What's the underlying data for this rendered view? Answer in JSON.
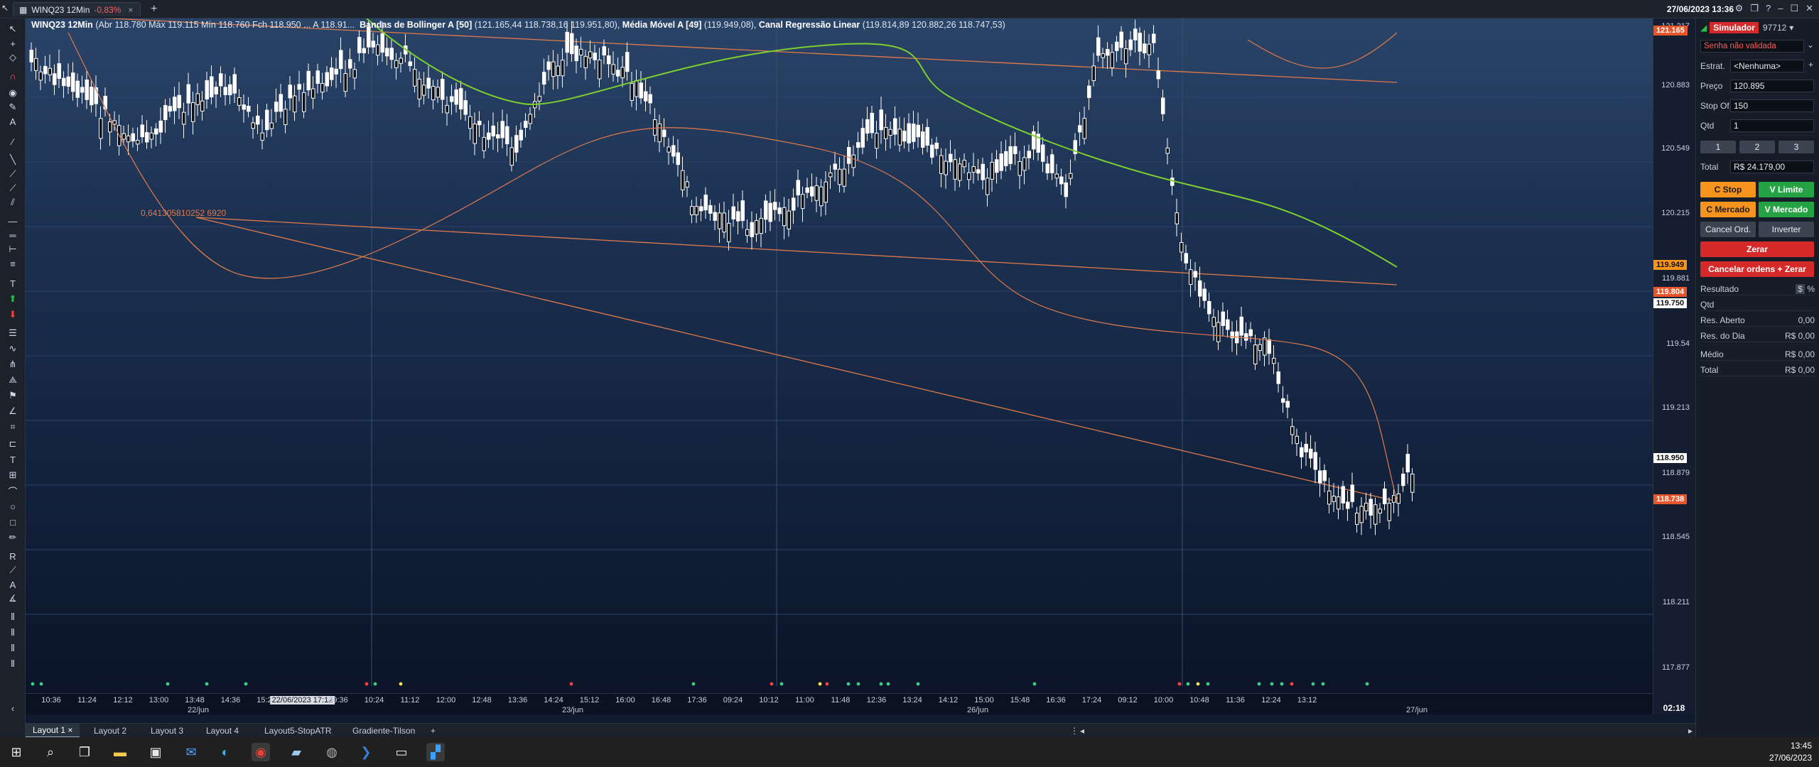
{
  "window": {
    "tab_title": "WINQ23 12Min",
    "tab_change": "-0,83%",
    "clock": "27/06/2023 13:36"
  },
  "legend": {
    "symbol": "WINQ23 12Min",
    "ohlc": "(Abr 118.780 Máx 119.115 Mín 118.760 Fch 118.950 ... A 118.91...",
    "bollinger_label": "Bandas de Bollinger A [50]",
    "bollinger_values": "(121.165,44 118.738,16 119.951,80),",
    "ma_label": "Média Móvel A [49]",
    "ma_values": "(119.949,08),",
    "reg_label": "Canal Regressão Linear",
    "reg_values": "(119.814,89 120.882,26 118.747,53)",
    "reg_annotation": "0,641305810252 6920"
  },
  "price_axis": {
    "ticks": [
      "121.217",
      "120.883",
      "120.549",
      "120.215",
      "119.881",
      "119.54",
      "119.213",
      "118.879",
      "118.545",
      "118.211",
      "117.877"
    ],
    "tags": [
      {
        "label": "121.165",
        "color": "#e8552b"
      },
      {
        "label": "119.949",
        "color": "#f7941d"
      },
      {
        "label": "119.804",
        "color": "#e8552b"
      },
      {
        "label": "119.750",
        "color": "#ffffff"
      },
      {
        "label": "118.950",
        "color": "#ffffff"
      },
      {
        "label": "118.738",
        "color": "#e8552b"
      }
    ]
  },
  "time_axis": {
    "ticks": [
      "10:36",
      "11:24",
      "12:12",
      "13:00",
      "13:48",
      "14:36",
      "15:24",
      "22/06/2023 17:12",
      "09:36",
      "10:24",
      "11:12",
      "12:00",
      "12:48",
      "13:36",
      "14:24",
      "15:12",
      "16:00",
      "16:48",
      "17:36",
      "09:24",
      "10:12",
      "11:00",
      "11:48",
      "12:36",
      "13:24",
      "14:12",
      "15:00",
      "15:48",
      "16:36",
      "17:24",
      "09:12",
      "10:00",
      "10:48",
      "11:36",
      "12:24",
      "13:12"
    ],
    "dates": [
      "22/jun",
      "23/jun",
      "26/jun",
      "27/jun"
    ],
    "corner": "02:18"
  },
  "layouts": [
    "Layout 1",
    "Layout 2",
    "Layout 3",
    "Layout 4",
    "Layout5-StopATR",
    "Gradiente-Tilson"
  ],
  "panel": {
    "mode": "Simulador",
    "account": "97712",
    "password_status": "Senha não validada",
    "strategy_label": "Estrat.",
    "strategy_value": "<Nenhuma>",
    "price_label": "Preço",
    "price_value": "120.895",
    "stop_label": "Stop Of.",
    "stop_value": "150",
    "qty_label": "Qtd",
    "qty_value": "1",
    "qty_buttons": [
      "1",
      "2",
      "3"
    ],
    "total_label": "Total",
    "total_value": "R$ 24.179,00",
    "btn_c_stop": "C Stop",
    "btn_v_limite": "V Limite",
    "btn_c_mercado": "C Mercado",
    "btn_v_mercado": "V Mercado",
    "btn_cancel_ord": "Cancel Ord.",
    "btn_inverter": "Inverter",
    "btn_zerar": "Zerar",
    "btn_cancelar_zerar": "Cancelar ordens + Zerar",
    "result_label": "Resultado",
    "result_rows": [
      {
        "label": "Qtd",
        "value": ""
      },
      {
        "label": "Res. Aberto",
        "value": "0,00"
      },
      {
        "label": "Res. do Dia",
        "value": "R$ 0,00"
      },
      {
        "label": "Médio",
        "value": "R$ 0,00"
      },
      {
        "label": "Total",
        "value": "R$ 0,00"
      }
    ]
  },
  "taskbar": {
    "time": "13:45",
    "date": "27/06/2023"
  }
}
